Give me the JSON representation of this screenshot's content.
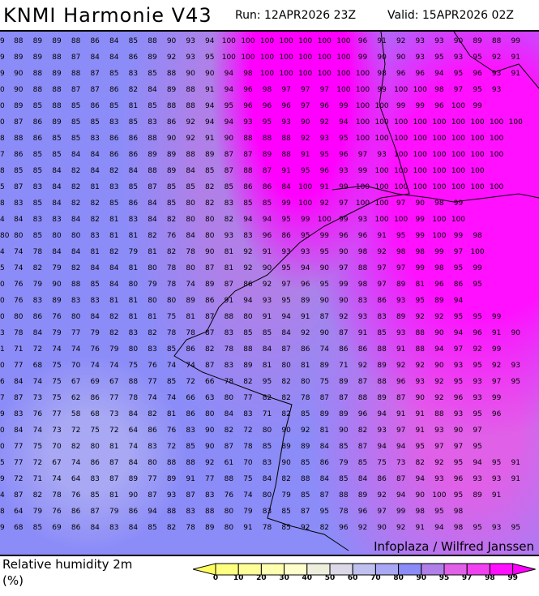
{
  "header": {
    "title": "KNMI Harmonie V43",
    "run": "Run: 12APR2026 23Z",
    "valid": "Valid: 15APR2026 02Z"
  },
  "map": {
    "credit": "Infoplaza / Wilfred Janssen",
    "rows": [
      [
        "9",
        "88",
        "89",
        "89",
        "88",
        "86",
        "84",
        "85",
        "88",
        "90",
        "93",
        "94",
        "100",
        "100",
        "100",
        "100",
        "100",
        "100",
        "100",
        "96",
        "91",
        "92",
        "93",
        "93",
        "90",
        "89",
        "88",
        "99"
      ],
      [
        "9",
        "89",
        "89",
        "88",
        "87",
        "84",
        "84",
        "86",
        "89",
        "92",
        "93",
        "95",
        "100",
        "100",
        "100",
        "100",
        "100",
        "100",
        "100",
        "99",
        "90",
        "90",
        "93",
        "95",
        "93",
        "95",
        "92",
        "91"
      ],
      [
        "9",
        "90",
        "88",
        "89",
        "88",
        "87",
        "85",
        "83",
        "85",
        "88",
        "90",
        "90",
        "94",
        "98",
        "100",
        "100",
        "100",
        "100",
        "100",
        "100",
        "98",
        "96",
        "96",
        "94",
        "95",
        "96",
        "93",
        "91"
      ],
      [
        "0",
        "90",
        "88",
        "88",
        "87",
        "87",
        "86",
        "82",
        "84",
        "89",
        "88",
        "91",
        "94",
        "96",
        "98",
        "97",
        "97",
        "97",
        "100",
        "100",
        "99",
        "100",
        "100",
        "98",
        "97",
        "95",
        "93"
      ],
      [
        "0",
        "89",
        "85",
        "88",
        "85",
        "86",
        "85",
        "81",
        "85",
        "88",
        "88",
        "94",
        "95",
        "96",
        "96",
        "96",
        "97",
        "96",
        "99",
        "100",
        "100",
        "99",
        "99",
        "96",
        "100",
        "99"
      ],
      [
        "0",
        "87",
        "86",
        "89",
        "85",
        "85",
        "83",
        "85",
        "83",
        "86",
        "92",
        "94",
        "94",
        "93",
        "95",
        "93",
        "90",
        "92",
        "94",
        "100",
        "100",
        "100",
        "100",
        "100",
        "100",
        "100",
        "100",
        "100"
      ],
      [
        "8",
        "88",
        "86",
        "85",
        "85",
        "83",
        "86",
        "86",
        "88",
        "90",
        "92",
        "91",
        "90",
        "88",
        "88",
        "88",
        "92",
        "93",
        "95",
        "100",
        "100",
        "100",
        "100",
        "100",
        "100",
        "100",
        "100"
      ],
      [
        "7",
        "86",
        "85",
        "85",
        "84",
        "84",
        "86",
        "86",
        "89",
        "89",
        "88",
        "89",
        "87",
        "87",
        "89",
        "88",
        "91",
        "95",
        "96",
        "97",
        "93",
        "100",
        "100",
        "100",
        "100",
        "100",
        "100"
      ],
      [
        "8",
        "85",
        "85",
        "84",
        "82",
        "84",
        "82",
        "84",
        "88",
        "89",
        "84",
        "85",
        "87",
        "88",
        "87",
        "91",
        "95",
        "96",
        "93",
        "99",
        "100",
        "100",
        "100",
        "100",
        "100",
        "100"
      ],
      [
        "5",
        "87",
        "83",
        "84",
        "82",
        "81",
        "83",
        "85",
        "87",
        "85",
        "85",
        "82",
        "85",
        "86",
        "86",
        "84",
        "100",
        "91",
        "99",
        "100",
        "100",
        "100",
        "100",
        "100",
        "100",
        "100",
        "100"
      ],
      [
        "8",
        "83",
        "85",
        "84",
        "82",
        "82",
        "85",
        "86",
        "84",
        "85",
        "80",
        "82",
        "83",
        "85",
        "85",
        "99",
        "100",
        "92",
        "97",
        "100",
        "100",
        "97",
        "90",
        "98",
        "99"
      ],
      [
        "4",
        "84",
        "83",
        "83",
        "84",
        "82",
        "81",
        "83",
        "84",
        "82",
        "80",
        "80",
        "82",
        "94",
        "94",
        "95",
        "99",
        "100",
        "99",
        "93",
        "100",
        "100",
        "99",
        "100",
        "100"
      ],
      [
        "80",
        "80",
        "85",
        "80",
        "80",
        "83",
        "81",
        "81",
        "82",
        "76",
        "84",
        "80",
        "93",
        "83",
        "96",
        "86",
        "95",
        "99",
        "96",
        "96",
        "91",
        "95",
        "99",
        "100",
        "99",
        "98"
      ],
      [
        "4",
        "74",
        "78",
        "84",
        "84",
        "81",
        "82",
        "79",
        "81",
        "82",
        "78",
        "90",
        "81",
        "92",
        "91",
        "93",
        "93",
        "95",
        "90",
        "98",
        "92",
        "98",
        "98",
        "99",
        "97",
        "100"
      ],
      [
        "5",
        "74",
        "82",
        "79",
        "82",
        "84",
        "84",
        "81",
        "80",
        "78",
        "80",
        "87",
        "81",
        "92",
        "90",
        "95",
        "94",
        "90",
        "97",
        "88",
        "97",
        "97",
        "99",
        "98",
        "95",
        "99"
      ],
      [
        "0",
        "76",
        "79",
        "90",
        "88",
        "85",
        "84",
        "80",
        "79",
        "78",
        "74",
        "89",
        "87",
        "86",
        "92",
        "97",
        "96",
        "95",
        "99",
        "98",
        "97",
        "89",
        "81",
        "96",
        "86",
        "95"
      ],
      [
        "0",
        "76",
        "83",
        "89",
        "83",
        "83",
        "81",
        "81",
        "80",
        "80",
        "89",
        "86",
        "91",
        "94",
        "93",
        "95",
        "89",
        "90",
        "90",
        "83",
        "86",
        "93",
        "95",
        "89",
        "94"
      ],
      [
        "0",
        "80",
        "86",
        "76",
        "80",
        "84",
        "82",
        "81",
        "81",
        "75",
        "81",
        "87",
        "88",
        "80",
        "91",
        "94",
        "91",
        "87",
        "92",
        "93",
        "83",
        "89",
        "92",
        "92",
        "95",
        "95",
        "99"
      ],
      [
        "3",
        "78",
        "84",
        "79",
        "77",
        "79",
        "82",
        "83",
        "82",
        "78",
        "78",
        "87",
        "83",
        "85",
        "85",
        "84",
        "92",
        "90",
        "87",
        "91",
        "85",
        "93",
        "88",
        "90",
        "94",
        "96",
        "91",
        "90"
      ],
      [
        "1",
        "71",
        "72",
        "74",
        "74",
        "76",
        "79",
        "80",
        "83",
        "85",
        "86",
        "82",
        "78",
        "88",
        "84",
        "87",
        "86",
        "74",
        "86",
        "86",
        "88",
        "91",
        "88",
        "94",
        "97",
        "92",
        "99"
      ],
      [
        "0",
        "77",
        "68",
        "75",
        "70",
        "74",
        "74",
        "75",
        "76",
        "74",
        "74",
        "87",
        "83",
        "89",
        "81",
        "80",
        "81",
        "89",
        "71",
        "92",
        "89",
        "92",
        "92",
        "90",
        "93",
        "95",
        "92",
        "93"
      ],
      [
        "6",
        "84",
        "74",
        "75",
        "67",
        "69",
        "67",
        "88",
        "77",
        "85",
        "72",
        "66",
        "78",
        "82",
        "95",
        "82",
        "80",
        "75",
        "89",
        "87",
        "88",
        "96",
        "93",
        "92",
        "95",
        "93",
        "97",
        "95"
      ],
      [
        "7",
        "87",
        "73",
        "75",
        "62",
        "86",
        "77",
        "78",
        "74",
        "74",
        "66",
        "63",
        "80",
        "77",
        "82",
        "82",
        "78",
        "87",
        "87",
        "88",
        "89",
        "87",
        "90",
        "92",
        "96",
        "93",
        "99"
      ],
      [
        "9",
        "83",
        "76",
        "77",
        "58",
        "68",
        "73",
        "84",
        "82",
        "81",
        "86",
        "80",
        "84",
        "83",
        "71",
        "82",
        "85",
        "89",
        "89",
        "96",
        "94",
        "91",
        "91",
        "88",
        "93",
        "95",
        "96"
      ],
      [
        "0",
        "84",
        "74",
        "73",
        "72",
        "75",
        "72",
        "64",
        "86",
        "76",
        "83",
        "90",
        "82",
        "72",
        "80",
        "90",
        "92",
        "81",
        "90",
        "82",
        "93",
        "97",
        "91",
        "93",
        "90",
        "97"
      ],
      [
        "0",
        "77",
        "75",
        "70",
        "82",
        "80",
        "81",
        "74",
        "83",
        "72",
        "85",
        "90",
        "87",
        "78",
        "85",
        "89",
        "89",
        "84",
        "85",
        "87",
        "94",
        "94",
        "95",
        "97",
        "97",
        "95"
      ],
      [
        "5",
        "77",
        "72",
        "67",
        "74",
        "86",
        "87",
        "84",
        "80",
        "88",
        "88",
        "92",
        "61",
        "70",
        "83",
        "90",
        "85",
        "86",
        "79",
        "85",
        "75",
        "73",
        "82",
        "92",
        "95",
        "94",
        "95",
        "91"
      ],
      [
        "9",
        "72",
        "71",
        "74",
        "64",
        "83",
        "87",
        "89",
        "77",
        "89",
        "91",
        "77",
        "88",
        "75",
        "84",
        "82",
        "88",
        "84",
        "85",
        "84",
        "86",
        "87",
        "94",
        "93",
        "96",
        "93",
        "93",
        "91"
      ],
      [
        "4",
        "87",
        "82",
        "78",
        "76",
        "85",
        "81",
        "90",
        "87",
        "93",
        "87",
        "83",
        "76",
        "74",
        "80",
        "79",
        "85",
        "87",
        "88",
        "89",
        "92",
        "94",
        "90",
        "100",
        "95",
        "89",
        "91"
      ],
      [
        "8",
        "64",
        "79",
        "76",
        "86",
        "87",
        "79",
        "86",
        "94",
        "88",
        "83",
        "88",
        "80",
        "79",
        "83",
        "85",
        "87",
        "95",
        "78",
        "96",
        "97",
        "99",
        "98",
        "95",
        "98"
      ],
      [
        "9",
        "68",
        "85",
        "69",
        "86",
        "84",
        "83",
        "84",
        "85",
        "82",
        "78",
        "89",
        "80",
        "91",
        "78",
        "85",
        "92",
        "82",
        "96",
        "92",
        "90",
        "92",
        "91",
        "94",
        "98",
        "95",
        "93",
        "95"
      ]
    ]
  },
  "legend": {
    "label": "Relative humidity 2m",
    "unit": "(%)",
    "ticks": [
      "0",
      "10",
      "20",
      "30",
      "40",
      "50",
      "60",
      "70",
      "80",
      "90",
      "95",
      "97",
      "98",
      "99"
    ],
    "colors": [
      "#ffff60",
      "#ffff80",
      "#ffff99",
      "#ffffb0",
      "#ffffcc",
      "#eeeedd",
      "#dcd8e8",
      "#c0c0f0",
      "#a8a8f4",
      "#8c8cf8",
      "#b080e8",
      "#e060e8",
      "#f040f0",
      "#ff10ff",
      "#ff00ff"
    ]
  }
}
